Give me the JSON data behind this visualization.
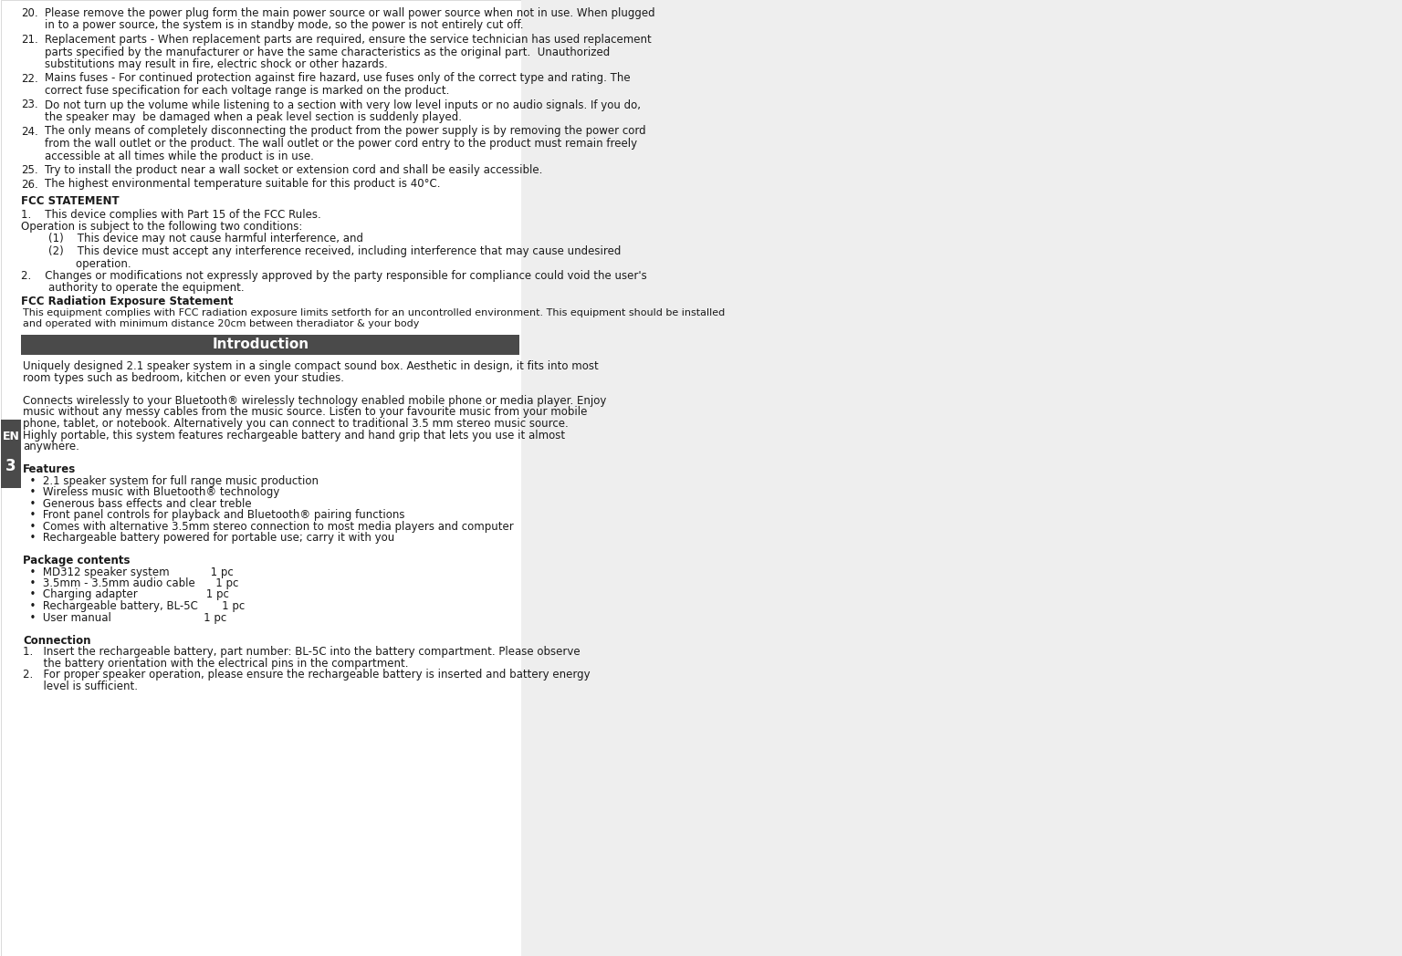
{
  "background_color": "#ffffff",
  "text_color": "#1a1a1a",
  "intro_bar_color": "#4a4a4a",
  "intro_bar_text": "Introduction",
  "intro_bar_text_color": "#ffffff",
  "intro_bar_fontsize": 11,
  "left_tab_color": "#4a4a4a",
  "left_tab_text_color": "#ffffff",
  "title": "FCC Radiation Exposure Statement",
  "body_lines": [
    "This equipment complies with FCC radiation exposure limits setforth for an uncontrolled environment. This equipment should be installed",
    "and operated with minimum distance 20cm between theradiator & your body"
  ],
  "lines_above": [
    {
      "num": "20.",
      "text": "Please remove the power plug form the main power source or wall power source when not in use. When plugged\nin to a power source, the system is in standby mode, so the power is not entirely cut off."
    },
    {
      "num": "21.",
      "text": "Replacement parts - When replacement parts are required, ensure the service technician has used replacement\nparts specified by the manufacturer or have the same characteristics as the original part.  Unauthorized\nsubstitutions may result in fire, electric shock or other hazards."
    },
    {
      "num": "22.",
      "text": "Mains fuses - For continued protection against fire hazard, use fuses only of the correct type and rating. The\ncorrect fuse specification for each voltage range is marked on the product."
    },
    {
      "num": "23.",
      "text": "Do not turn up the volume while listening to a section with very low level inputs or no audio signals. If you do,\nthe speaker may  be damaged when a peak level section is suddenly played."
    },
    {
      "num": "24.",
      "text": "The only means of completely disconnecting the product from the power supply is by removing the power cord\nfrom the wall outlet or the product. The wall outlet or the power cord entry to the product must remain freely\naccessible at all times while the product is in use."
    },
    {
      "num": "25.",
      "text": "Try to install the product near a wall socket or extension cord and shall be easily accessible."
    },
    {
      "num": "26.",
      "text": "The highest environmental temperature suitable for this product is 40°C."
    }
  ],
  "fcc_statement_title": "FCC STATEMENT",
  "fcc_statement_lines": [
    "1.    This device complies with Part 15 of the FCC Rules.",
    "Operation is subject to the following two conditions:",
    "        (1)    This device may not cause harmful interference, and",
    "        (2)    This device must accept any interference received, including interference that may cause undesired",
    "                operation.",
    "2.    Changes or modifications not expressly approved by the party responsible for compliance could void the user's",
    "        authority to operate the equipment."
  ],
  "intro_lines": [
    {
      "text": "Uniquely designed 2.1 speaker system in a single compact sound box. Aesthetic in design, it fits into most",
      "bold": false
    },
    {
      "text": "room types such as bedroom, kitchen or even your studies.",
      "bold": false
    },
    {
      "text": "",
      "bold": false
    },
    {
      "text": "Connects wirelessly to your Bluetooth® wirelessly technology enabled mobile phone or media player. Enjoy",
      "bold": false
    },
    {
      "text": "music without any messy cables from the music source. Listen to your favourite music from your mobile",
      "bold": false
    },
    {
      "text": "phone, tablet, or notebook. Alternatively you can connect to traditional 3.5 mm stereo music source.",
      "bold": false
    },
    {
      "text": "Highly portable, this system features rechargeable battery and hand grip that lets you use it almost",
      "bold": false
    },
    {
      "text": "anywhere.",
      "bold": false
    },
    {
      "text": "",
      "bold": false
    },
    {
      "text": "Features",
      "bold": true
    },
    {
      "text": "  •  2.1 speaker system for full range music production",
      "bold": false
    },
    {
      "text": "  •  Wireless music with Bluetooth® technology",
      "bold": false
    },
    {
      "text": "  •  Generous bass effects and clear treble",
      "bold": false
    },
    {
      "text": "  •  Front panel controls for playback and Bluetooth® pairing functions",
      "bold": false
    },
    {
      "text": "  •  Comes with alternative 3.5mm stereo connection to most media players and computer",
      "bold": false
    },
    {
      "text": "  •  Rechargeable battery powered for portable use; carry it with you",
      "bold": false
    },
    {
      "text": "",
      "bold": false
    },
    {
      "text": "Package contents",
      "bold": true
    },
    {
      "text": "  •  MD312 speaker system            1 pc",
      "bold": false
    },
    {
      "text": "  •  3.5mm - 3.5mm audio cable      1 pc",
      "bold": false
    },
    {
      "text": "  •  Charging adapter                    1 pc",
      "bold": false
    },
    {
      "text": "  •  Rechargeable battery, BL-5C       1 pc",
      "bold": false
    },
    {
      "text": "  •  User manual                           1 pc",
      "bold": false
    },
    {
      "text": "",
      "bold": false
    },
    {
      "text": "Connection",
      "bold": true
    },
    {
      "text": "1.   Insert the rechargeable battery, part number: BL-5C into the battery compartment. Please observe",
      "bold": false
    },
    {
      "text": "      the battery orientation with the electrical pins in the compartment.",
      "bold": false
    },
    {
      "text": "2.   For proper speaker operation, please ensure the rechargeable battery is inserted and battery energy",
      "bold": false
    },
    {
      "text": "      level is sufficient.",
      "bold": false
    }
  ]
}
